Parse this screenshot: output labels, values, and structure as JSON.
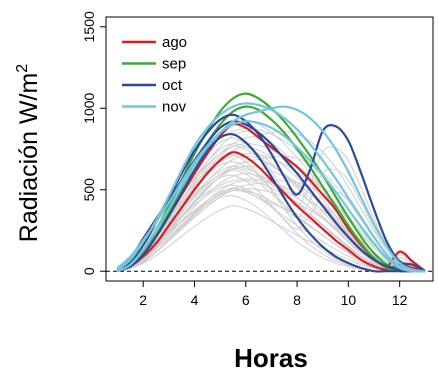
{
  "chart_data": {
    "type": "line",
    "title": "",
    "xlabel": "Horas",
    "ylabel": "Radiación W/m",
    "ylabel_sup": "2",
    "xlim": [
      0.55,
      13.3
    ],
    "ylim": [
      -60,
      1560
    ],
    "x_ticks": [
      2,
      4,
      6,
      8,
      10,
      12
    ],
    "y_ticks": [
      0,
      500,
      1000,
      1500
    ],
    "x_tick_labels": [
      "2",
      "4",
      "6",
      "8",
      "10",
      "12"
    ],
    "y_tick_labels": [
      "0",
      "500",
      "1000",
      "1500"
    ],
    "reference_line": {
      "y": 0,
      "style": "dashed",
      "color": "#000000"
    },
    "background_series_color": "#cfcfcf",
    "legend": {
      "position": "top-left"
    },
    "series": [
      {
        "name": "ago",
        "color": "#dd1c24",
        "curves": [
          {
            "x": [
              1,
              1.5,
              2,
              2.5,
              3,
              3.5,
              4,
              4.5,
              5,
              5.5,
              6,
              6.5,
              7,
              7.5,
              8,
              8.5,
              9,
              9.5,
              10,
              10.5,
              11,
              11.5,
              12,
              12.5,
              13
            ],
            "y": [
              20,
              60,
              120,
              220,
              340,
              470,
              600,
              720,
              830,
              900,
              880,
              820,
              760,
              700,
              640,
              560,
              470,
              380,
              260,
              160,
              80,
              30,
              120,
              60,
              0
            ]
          },
          {
            "x": [
              1,
              1.5,
              2,
              2.5,
              3,
              3.5,
              4,
              4.5,
              5,
              5.5,
              6,
              6.5,
              7,
              7.5,
              8,
              8.5,
              9,
              9.5,
              10,
              10.5,
              11,
              11.5,
              12,
              12.5,
              13
            ],
            "y": [
              10,
              30,
              90,
              170,
              280,
              390,
              500,
              600,
              680,
              730,
              700,
              640,
              560,
              480,
              400,
              330,
              260,
              190,
              130,
              70,
              30,
              10,
              40,
              20,
              0
            ]
          }
        ]
      },
      {
        "name": "sep",
        "color": "#3cab35",
        "curves": [
          {
            "x": [
              1,
              1.5,
              2,
              2.5,
              3,
              3.5,
              4,
              4.5,
              5,
              5.5,
              6,
              6.5,
              7,
              7.5,
              8,
              8.5,
              9,
              9.5,
              10,
              10.5,
              11,
              11.5,
              12,
              12.5,
              13
            ],
            "y": [
              10,
              50,
              130,
              250,
              400,
              560,
              720,
              860,
              980,
              1060,
              1090,
              1060,
              1000,
              920,
              820,
              710,
              590,
              460,
              330,
              210,
              110,
              40,
              10,
              0,
              0
            ]
          },
          {
            "x": [
              1,
              1.5,
              2,
              2.5,
              3,
              3.5,
              4,
              4.5,
              5,
              5.5,
              6,
              6.5,
              7,
              7.5,
              8,
              8.5,
              9,
              9.5,
              10,
              10.5,
              11,
              11.5,
              12,
              12.5,
              13
            ],
            "y": [
              5,
              40,
              110,
              220,
              360,
              510,
              660,
              790,
              900,
              980,
              1010,
              990,
              930,
              850,
              750,
              640,
              520,
              400,
              280,
              170,
              80,
              20,
              0,
              0,
              0
            ]
          }
        ]
      },
      {
        "name": "oct",
        "color": "#2d4a9a",
        "curves": [
          {
            "x": [
              1,
              1.5,
              2,
              2.5,
              3,
              3.5,
              4,
              4.5,
              5,
              5.5,
              6,
              6.5,
              7,
              7.5,
              8,
              8.5,
              9,
              9.5,
              10,
              10.5,
              11,
              11.5,
              12,
              12.5,
              13
            ],
            "y": [
              5,
              60,
              160,
              300,
              450,
              600,
              740,
              850,
              930,
              960,
              920,
              840,
              720,
              580,
              470,
              620,
              860,
              890,
              800,
              600,
              380,
              180,
              60,
              40,
              0
            ]
          },
          {
            "x": [
              1,
              1.5,
              2,
              2.5,
              3,
              3.5,
              4,
              4.5,
              5,
              5.5,
              6,
              6.5,
              7,
              7.5,
              8,
              8.5,
              9,
              9.5,
              10,
              10.5,
              11,
              11.5,
              12,
              12.5,
              13
            ],
            "y": [
              0,
              30,
              100,
              210,
              340,
              480,
              620,
              740,
              820,
              840,
              790,
              700,
              580,
              450,
              330,
              230,
              150,
              90,
              50,
              20,
              0,
              0,
              0,
              0,
              0
            ]
          },
          {
            "x": [
              1,
              1.5,
              2,
              2.5,
              3,
              3.5,
              4,
              4.5,
              5,
              5.5,
              6,
              6.5,
              7,
              7.5,
              8,
              8.5,
              9,
              9.5,
              10,
              10.5,
              11,
              11.5,
              12,
              12.5,
              13
            ],
            "y": [
              10,
              80,
              200,
              320,
              440,
              560,
              680,
              790,
              880,
              920,
              900,
              850,
              780,
              690,
              600,
              500,
              400,
              300,
              210,
              130,
              70,
              30,
              10,
              0,
              0
            ]
          }
        ]
      },
      {
        "name": "nov",
        "color": "#74c6dc",
        "curves": [
          {
            "x": [
              1,
              1.5,
              2,
              2.5,
              3,
              3.5,
              4,
              4.5,
              5,
              5.5,
              6,
              6.5,
              7,
              7.5,
              8,
              8.5,
              9,
              9.5,
              10,
              10.5,
              11,
              11.5,
              12,
              12.5,
              13
            ],
            "y": [
              10,
              70,
              180,
              310,
              460,
              620,
              770,
              880,
              960,
              1010,
              1030,
              1020,
              990,
              940,
              870,
              780,
              680,
              570,
              450,
              330,
              210,
              100,
              30,
              0,
              0
            ]
          },
          {
            "x": [
              1,
              1.5,
              2,
              2.5,
              3,
              3.5,
              4,
              4.5,
              5,
              5.5,
              6,
              6.5,
              7,
              7.5,
              8,
              8.5,
              9,
              9.5,
              10,
              10.5,
              11,
              11.5,
              12,
              12.5,
              13
            ],
            "y": [
              0,
              40,
              130,
              250,
              380,
              520,
              650,
              760,
              850,
              920,
              960,
              980,
              1000,
              1010,
              990,
              940,
              860,
              750,
              610,
              450,
              290,
              150,
              50,
              10,
              0
            ]
          },
          {
            "x": [
              1,
              1.5,
              2,
              2.5,
              3,
              3.5,
              4,
              4.5,
              5,
              5.5,
              6,
              6.5,
              7,
              7.5,
              8,
              8.5,
              9,
              9.5,
              10,
              10.5,
              11,
              11.5,
              12,
              12.5,
              13
            ],
            "y": [
              20,
              90,
              190,
              300,
              420,
              550,
              670,
              770,
              850,
              900,
              920,
              910,
              880,
              830,
              760,
              680,
              590,
              490,
              380,
              270,
              170,
              80,
              20,
              0,
              0
            ]
          }
        ]
      }
    ]
  }
}
